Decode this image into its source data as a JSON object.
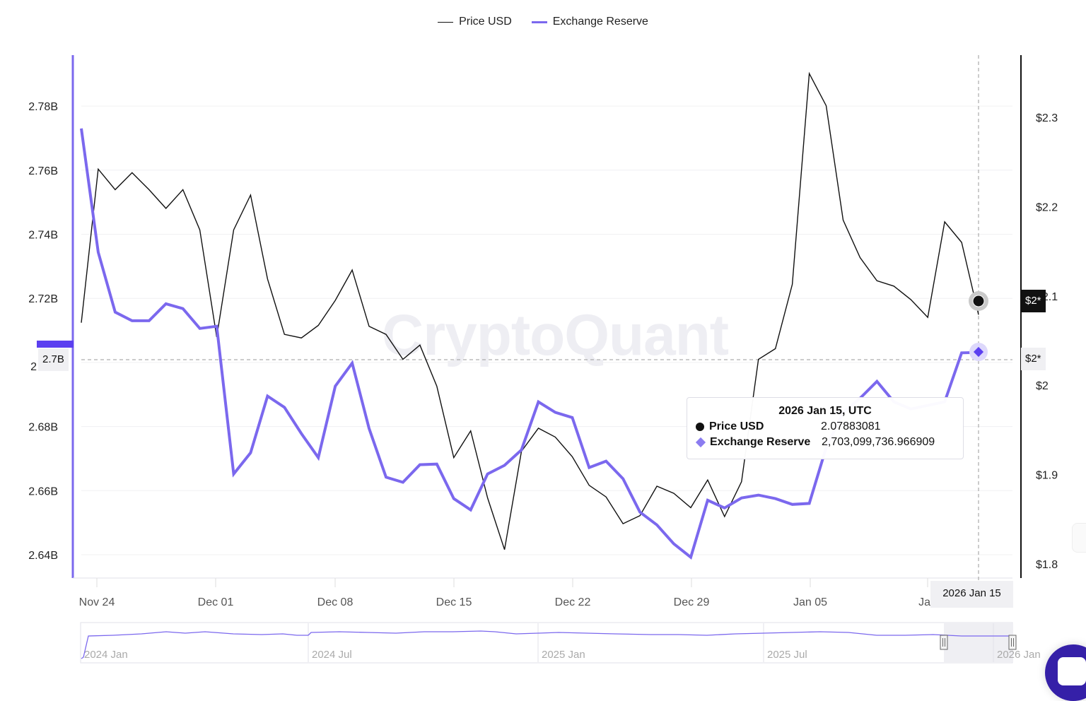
{
  "legend": {
    "items": [
      {
        "label": "Price USD",
        "color": "#111111"
      },
      {
        "label": "Exchange Reserve",
        "color": "#7b68ee"
      }
    ]
  },
  "watermark": "CryptoQuant",
  "crosshair": {
    "left_axis_badge": "2.7B",
    "right_axis_price_badge": "$2*",
    "right_axis_reserve_badge": "$2*",
    "x_axis_badge": "2026 Jan 15"
  },
  "tooltip": {
    "title": "2026 Jan 15, UTC",
    "rows": [
      {
        "label": "Price USD",
        "value": "2.07883081"
      },
      {
        "label": "Exchange Reserve",
        "value": "2,703,099,736.966909"
      }
    ]
  },
  "navigator": {
    "labels": [
      "2024 Jan",
      "2024 Jul",
      "2025 Jan",
      "2025 Jul",
      "2026 Jan"
    ]
  },
  "chart_data": {
    "type": "line",
    "title": "",
    "xlabel": "",
    "ylabel": "Exchange Reserve",
    "ylabel_right": "Price USD",
    "x_tick_labels": [
      "Nov 24",
      "Dec 01",
      "Dec 08",
      "Dec 15",
      "Dec 22",
      "Dec 29",
      "Jan 05",
      "Jan"
    ],
    "y_left_ticks": [
      "2.64B",
      "2.66B",
      "2.68B",
      "2.7B",
      "2.72B",
      "2.74B",
      "2.76B",
      "2.78B"
    ],
    "y_right_ticks": [
      "$1.8",
      "$1.9",
      "$2",
      "$2.1",
      "$2.2",
      "$2.3"
    ],
    "ylim_left": [
      2633000000,
      2795000000
    ],
    "ylim_right": [
      1.785,
      2.37
    ],
    "grid": true,
    "legend_position": "top",
    "x": [
      "2025-11-23",
      "2025-11-24",
      "2025-11-25",
      "2025-11-26",
      "2025-11-27",
      "2025-11-28",
      "2025-11-29",
      "2025-11-30",
      "2025-12-01",
      "2025-12-02",
      "2025-12-03",
      "2025-12-04",
      "2025-12-05",
      "2025-12-06",
      "2025-12-07",
      "2025-12-08",
      "2025-12-09",
      "2025-12-10",
      "2025-12-11",
      "2025-12-12",
      "2025-12-13",
      "2025-12-14",
      "2025-12-15",
      "2025-12-16",
      "2025-12-17",
      "2025-12-18",
      "2025-12-19",
      "2025-12-20",
      "2025-12-21",
      "2025-12-22",
      "2025-12-23",
      "2025-12-24",
      "2025-12-25",
      "2025-12-26",
      "2025-12-27",
      "2025-12-28",
      "2025-12-29",
      "2025-12-30",
      "2025-12-31",
      "2026-01-01",
      "2026-01-02",
      "2026-01-03",
      "2026-01-04",
      "2026-01-05",
      "2026-01-06",
      "2026-01-07",
      "2026-01-08",
      "2026-01-09",
      "2026-01-10",
      "2026-01-11",
      "2026-01-12",
      "2026-01-13",
      "2026-01-14",
      "2026-01-15"
    ],
    "series": [
      {
        "name": "Exchange Reserve",
        "axis": "left",
        "color": "#7b68ee",
        "values": [
          2773000000,
          2734400000,
          2715700000,
          2713000000,
          2713000000,
          2718300000,
          2716800000,
          2710600000,
          2711300000,
          2665200000,
          2671800000,
          2689500000,
          2686000000,
          2677800000,
          2670300000,
          2692600000,
          2699800000,
          2679400000,
          2664200000,
          2662600000,
          2668100000,
          2668300000,
          2657500000,
          2654000000,
          2665200000,
          2667900000,
          2672700000,
          2687700000,
          2684400000,
          2682800000,
          2667200000,
          2669200000,
          2663700000,
          2653300000,
          2649300000,
          2643400000,
          2639200000,
          2657000000,
          2654600000,
          2657700000,
          2658600000,
          2657500000,
          2655700000,
          2656000000,
          2673400000,
          2684400000,
          2688800000,
          2694100000,
          2687700000,
          2685500000,
          2686600000,
          2687700000,
          2703000000,
          2703100000
        ]
      },
      {
        "name": "Price USD",
        "axis": "right",
        "color": "#111111",
        "values": [
          2.07,
          2.242,
          2.219,
          2.238,
          2.219,
          2.198,
          2.219,
          2.174,
          2.054,
          2.174,
          2.213,
          2.119,
          2.057,
          2.053,
          2.067,
          2.095,
          2.129,
          2.066,
          2.057,
          2.029,
          2.045,
          1.999,
          1.919,
          1.949,
          1.874,
          1.816,
          1.926,
          1.952,
          1.942,
          1.92,
          1.888,
          1.875,
          1.845,
          1.854,
          1.887,
          1.879,
          1.863,
          1.894,
          1.853,
          1.892,
          2.029,
          2.041,
          2.113,
          2.349,
          2.313,
          2.185,
          2.143,
          2.117,
          2.111,
          2.096,
          2.076,
          2.183,
          2.16,
          2.079
        ]
      }
    ]
  }
}
